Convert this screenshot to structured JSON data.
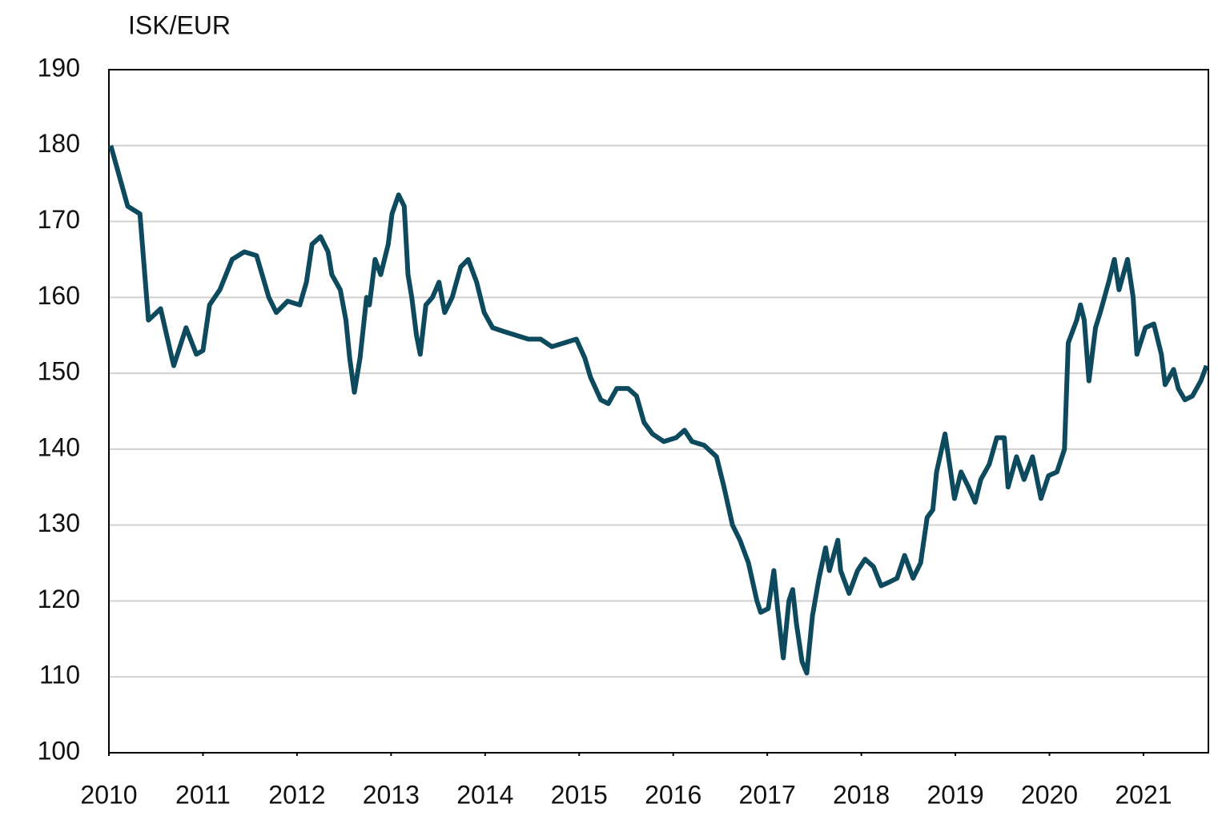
{
  "chart_data": {
    "type": "line",
    "y_label": "ISK/EUR",
    "x": [
      2010.02,
      2010.2,
      2010.33,
      2010.42,
      2010.55,
      2010.67,
      2010.69,
      2010.82,
      2010.93,
      2011.0,
      2011.07,
      2011.18,
      2011.31,
      2011.44,
      2011.57,
      2011.7,
      2011.78,
      2011.9,
      2012.03,
      2012.1,
      2012.16,
      2012.25,
      2012.33,
      2012.37,
      2012.46,
      2012.52,
      2012.56,
      2012.61,
      2012.67,
      2012.74,
      2012.77,
      2012.83,
      2012.89,
      2012.97,
      2013.01,
      2013.08,
      2013.14,
      2013.18,
      2013.22,
      2013.27,
      2013.31,
      2013.37,
      2013.44,
      2013.51,
      2013.57,
      2013.65,
      2013.74,
      2013.82,
      2013.91,
      2013.99,
      2014.08,
      2014.2,
      2014.33,
      2014.46,
      2014.59,
      2014.71,
      2014.84,
      2014.97,
      2015.06,
      2015.12,
      2015.23,
      2015.31,
      2015.4,
      2015.52,
      2015.61,
      2015.69,
      2015.78,
      2015.9,
      2016.03,
      2016.12,
      2016.2,
      2016.33,
      2016.46,
      2016.54,
      2016.63,
      2016.71,
      2016.8,
      2016.89,
      2016.93,
      2017.01,
      2017.07,
      2017.11,
      2017.17,
      2017.23,
      2017.27,
      2017.31,
      2017.37,
      2017.42,
      2017.48,
      2017.55,
      2017.62,
      2017.66,
      2017.75,
      2017.78,
      2017.87,
      2017.96,
      2018.04,
      2018.13,
      2018.21,
      2018.3,
      2018.38,
      2018.46,
      2018.55,
      2018.63,
      2018.7,
      2018.76,
      2018.8,
      2018.89,
      2018.95,
      2018.99,
      2019.06,
      2019.14,
      2019.21,
      2019.27,
      2019.36,
      2019.44,
      2019.52,
      2019.56,
      2019.65,
      2019.73,
      2019.82,
      2019.91,
      2019.99,
      2020.08,
      2020.16,
      2020.2,
      2020.29,
      2020.33,
      2020.37,
      2020.42,
      2020.49,
      2020.54,
      2020.63,
      2020.69,
      2020.74,
      2020.83,
      2020.89,
      2020.93,
      2021.02,
      2021.11,
      2021.19,
      2021.23,
      2021.32,
      2021.37,
      2021.44,
      2021.52,
      2021.61,
      2021.67
    ],
    "series": [
      {
        "name": "ISK/EUR",
        "color": "#0d4a5e",
        "values": [
          180,
          172,
          171,
          157,
          158.5,
          152,
          151,
          156,
          152.5,
          153,
          159,
          161,
          165,
          166,
          165.5,
          160,
          158,
          159.5,
          159,
          162,
          167,
          168,
          166,
          163,
          161,
          157,
          152,
          147.5,
          152,
          160,
          159,
          165,
          163,
          167,
          171,
          173.5,
          172,
          163,
          160,
          155,
          152.5,
          159,
          160,
          162,
          158,
          160,
          164,
          165,
          162,
          158,
          156,
          155.5,
          155,
          154.5,
          154.5,
          153.5,
          154,
          154.5,
          152,
          149.5,
          146.5,
          146,
          148,
          148,
          147,
          143.5,
          142,
          141,
          141.5,
          142.5,
          141,
          140.5,
          139,
          135,
          130,
          128,
          125,
          120,
          118.5,
          119,
          124,
          119,
          112.5,
          120,
          121.5,
          117,
          112,
          110.5,
          118,
          123,
          127,
          124,
          128,
          124,
          121,
          124,
          125.5,
          124.5,
          122,
          122.5,
          123,
          126,
          123,
          125,
          131,
          132,
          137,
          142,
          137,
          133.5,
          137,
          135,
          133,
          136,
          138,
          141.5,
          141.5,
          135,
          139,
          136,
          139,
          133.5,
          136.5,
          137,
          140,
          154,
          157,
          159,
          157,
          149,
          156,
          158,
          162,
          165,
          161,
          165,
          160,
          152.5,
          156,
          156.5,
          152.5,
          148.5,
          150.5,
          148,
          146.5,
          147,
          149,
          151
        ]
      }
    ],
    "xlim": [
      2010,
      2021.69
    ],
    "xticks": [
      2010,
      2011,
      2012,
      2013,
      2014,
      2015,
      2016,
      2017,
      2018,
      2019,
      2020,
      2021
    ],
    "ylim": [
      100,
      190
    ],
    "yticks": [
      100,
      110,
      120,
      130,
      140,
      150,
      160,
      170,
      180,
      190
    ],
    "grid": true
  }
}
